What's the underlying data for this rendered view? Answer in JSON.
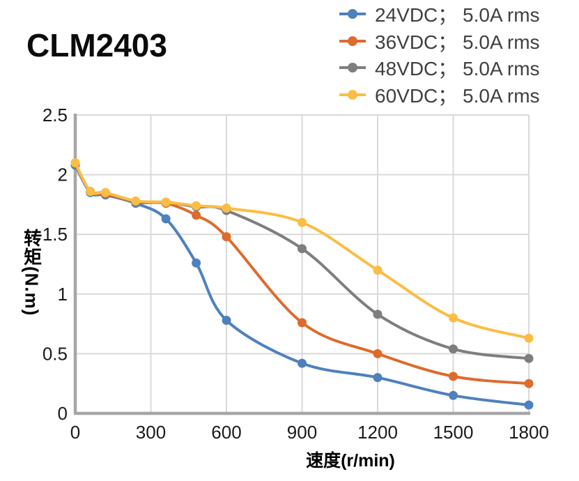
{
  "title": "CLM2403",
  "chart_data": {
    "type": "line",
    "title": "CLM2403",
    "xlabel": "速度(r/min)",
    "ylabel": "转矩(N.m)",
    "x": [
      0,
      60,
      120,
      240,
      360,
      480,
      600,
      900,
      1200,
      1500,
      1800
    ],
    "series": [
      {
        "name": "24VDC； 5.0A rms",
        "color": "#4E81BD",
        "values": [
          2.08,
          1.85,
          1.83,
          1.76,
          1.63,
          1.26,
          0.78,
          0.42,
          0.3,
          0.15,
          0.07
        ]
      },
      {
        "name": "36VDC； 5.0A rms",
        "color": "#DD6B2D",
        "values": [
          2.09,
          1.86,
          1.84,
          1.77,
          1.76,
          1.66,
          1.48,
          0.76,
          0.5,
          0.31,
          0.25
        ]
      },
      {
        "name": "48VDC； 5.0A rms",
        "color": "#7E7E7E",
        "values": [
          2.09,
          1.86,
          1.85,
          1.77,
          1.77,
          1.73,
          1.7,
          1.38,
          0.83,
          0.54,
          0.46
        ]
      },
      {
        "name": "60VDC； 5.0A rms",
        "color": "#FBBD43",
        "values": [
          2.1,
          1.86,
          1.85,
          1.78,
          1.77,
          1.74,
          1.72,
          1.6,
          1.2,
          0.8,
          0.63
        ]
      }
    ],
    "xlim": [
      0,
      1800
    ],
    "ylim": [
      0,
      2.5
    ],
    "xticks": [
      0,
      300,
      600,
      900,
      1200,
      1500,
      1800
    ],
    "yticks": [
      0,
      0.5,
      1,
      1.5,
      2,
      2.5
    ],
    "grid": true,
    "legend_position": "top-right"
  },
  "style_colors": {
    "grid": "#D9D9D9",
    "axis": "#A6A6A6",
    "tick_text": "#1A1A1A",
    "legend_text": "#3F3F3F"
  }
}
